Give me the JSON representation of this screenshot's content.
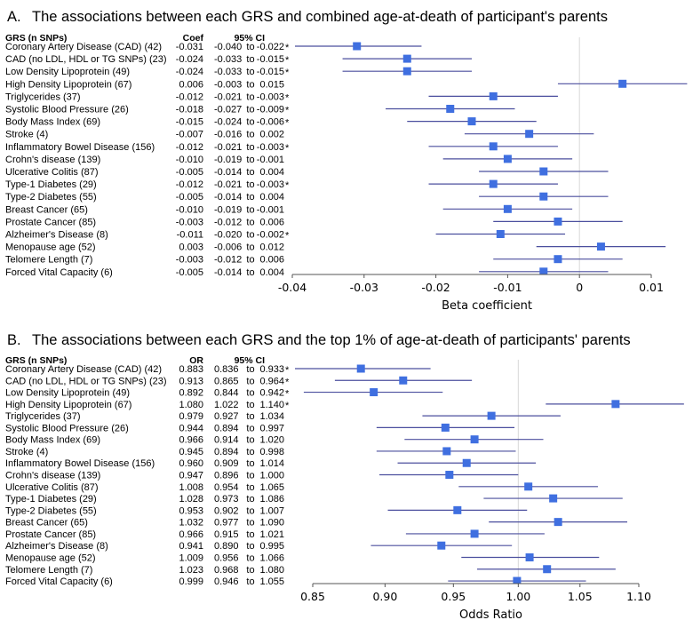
{
  "colors": {
    "marker": "#3f6fe0",
    "ci_line": "#4b4f9e",
    "ref_line": "#d8d8d8",
    "axis": "#555555"
  },
  "chart_data": [
    {
      "type": "forest",
      "panel": "A.",
      "title": "The associations between each GRS and combined age-at-death of participant's parents",
      "columns": [
        "GRS (n SNPs)",
        "Coef",
        "95% CI"
      ],
      "xlabel": "Beta coefficient",
      "xscale": "linear",
      "xlim": [
        -0.04,
        0.014
      ],
      "xticks": [
        -0.04,
        -0.03,
        -0.02,
        -0.01,
        0,
        0.01
      ],
      "xtick_labels": [
        "-0.04",
        "-0.03",
        "-0.02",
        "-0.01",
        "0",
        "0.01"
      ],
      "reference": 0,
      "rows": [
        {
          "label": "Coronary Artery Disease (CAD) (42)",
          "est": "-0.031",
          "lo": "-0.040",
          "hi": "-0.022",
          "sig": true
        },
        {
          "label": "CAD (no LDL, HDL or TG SNPs) (23)",
          "est": "-0.024",
          "lo": "-0.033",
          "hi": "-0.015",
          "sig": true
        },
        {
          "label": "Low Density Lipoprotein (49)",
          "est": "-0.024",
          "lo": "-0.033",
          "hi": "-0.015",
          "sig": true
        },
        {
          "label": "High Density Lipoprotein (67)",
          "est": "0.006",
          "lo": "-0.003",
          "hi": "0.015",
          "sig": false
        },
        {
          "label": "Triglycerides (37)",
          "est": "-0.012",
          "lo": "-0.021",
          "hi": "-0.003",
          "sig": true
        },
        {
          "label": "Systolic Blood Pressure (26)",
          "est": "-0.018",
          "lo": "-0.027",
          "hi": "-0.009",
          "sig": true
        },
        {
          "label": "Body Mass Index (69)",
          "est": "-0.015",
          "lo": "-0.024",
          "hi": "-0.006",
          "sig": true
        },
        {
          "label": "Stroke (4)",
          "est": "-0.007",
          "lo": "-0.016",
          "hi": "0.002",
          "sig": false
        },
        {
          "label": "Inflammatory Bowel Disease (156)",
          "est": "-0.012",
          "lo": "-0.021",
          "hi": "-0.003",
          "sig": true
        },
        {
          "label": "Crohn's disease (139)",
          "est": "-0.010",
          "lo": "-0.019",
          "hi": "-0.001",
          "sig": false
        },
        {
          "label": "Ulcerative Colitis (87)",
          "est": "-0.005",
          "lo": "-0.014",
          "hi": "0.004",
          "sig": false
        },
        {
          "label": "Type-1 Diabetes (29)",
          "est": "-0.012",
          "lo": "-0.021",
          "hi": "-0.003",
          "sig": true
        },
        {
          "label": "Type-2 Diabetes (55)",
          "est": "-0.005",
          "lo": "-0.014",
          "hi": "0.004",
          "sig": false
        },
        {
          "label": "Breast Cancer (65)",
          "est": "-0.010",
          "lo": "-0.019",
          "hi": "-0.001",
          "sig": false
        },
        {
          "label": "Prostate Cancer (85)",
          "est": "-0.003",
          "lo": "-0.012",
          "hi": "0.006",
          "sig": false
        },
        {
          "label": "Alzheimer's Disease (8)",
          "est": "-0.011",
          "lo": "-0.020",
          "hi": "-0.002",
          "sig": true
        },
        {
          "label": "Menopause age (52)",
          "est": "0.003",
          "lo": "-0.006",
          "hi": "0.012",
          "sig": false
        },
        {
          "label": "Telomere Length (7)",
          "est": "-0.003",
          "lo": "-0.012",
          "hi": "0.006",
          "sig": false
        },
        {
          "label": "Forced Vital Capacity (6)",
          "est": "-0.005",
          "lo": "-0.014",
          "hi": "0.004",
          "sig": false
        }
      ]
    },
    {
      "type": "forest",
      "panel": "B.",
      "title": "The associations between each GRS and the top 1% of age-at-death of participants' parents",
      "columns": [
        "GRS (n SNPs)",
        "OR",
        "95% CI"
      ],
      "xlabel": "Odds Ratio",
      "xscale": "log",
      "xlim": [
        0.82,
        1.14
      ],
      "xticks": [
        0.85,
        0.9,
        0.95,
        1.0,
        1.05,
        1.1
      ],
      "xtick_labels": [
        "0.85",
        "0.90",
        "0.95",
        "1.00",
        "1.05",
        "1.10"
      ],
      "reference": 1,
      "rows": [
        {
          "label": "Coronary Artery Disease (CAD) (42)",
          "est": "0.883",
          "lo": "0.836",
          "hi": "0.933",
          "sig": true
        },
        {
          "label": "CAD (no LDL, HDL or TG SNPs) (23)",
          "est": "0.913",
          "lo": "0.865",
          "hi": "0.964",
          "sig": true
        },
        {
          "label": "Low Density Lipoprotein (49)",
          "est": "0.892",
          "lo": "0.844",
          "hi": "0.942",
          "sig": true
        },
        {
          "label": "High Density Lipoprotein (67)",
          "est": "1.080",
          "lo": "1.022",
          "hi": "1.140",
          "sig": true
        },
        {
          "label": "Triglycerides (37)",
          "est": "0.979",
          "lo": "0.927",
          "hi": "1.034",
          "sig": false
        },
        {
          "label": "Systolic Blood Pressure (26)",
          "est": "0.944",
          "lo": "0.894",
          "hi": "0.997",
          "sig": false
        },
        {
          "label": "Body Mass Index (69)",
          "est": "0.966",
          "lo": "0.914",
          "hi": "1.020",
          "sig": false
        },
        {
          "label": "Stroke (4)",
          "est": "0.945",
          "lo": "0.894",
          "hi": "0.998",
          "sig": false
        },
        {
          "label": "Inflammatory Bowel Disease (156)",
          "est": "0.960",
          "lo": "0.909",
          "hi": "1.014",
          "sig": false
        },
        {
          "label": "Crohn's disease (139)",
          "est": "0.947",
          "lo": "0.896",
          "hi": "1.000",
          "sig": false
        },
        {
          "label": "Ulcerative Colitis (87)",
          "est": "1.008",
          "lo": "0.954",
          "hi": "1.065",
          "sig": false
        },
        {
          "label": "Type-1 Diabetes (29)",
          "est": "1.028",
          "lo": "0.973",
          "hi": "1.086",
          "sig": false
        },
        {
          "label": "Type-2 Diabetes (55)",
          "est": "0.953",
          "lo": "0.902",
          "hi": "1.007",
          "sig": false
        },
        {
          "label": "Breast Cancer (65)",
          "est": "1.032",
          "lo": "0.977",
          "hi": "1.090",
          "sig": false
        },
        {
          "label": "Prostate Cancer (85)",
          "est": "0.966",
          "lo": "0.915",
          "hi": "1.021",
          "sig": false
        },
        {
          "label": "Alzheimer's Disease (8)",
          "est": "0.941",
          "lo": "0.890",
          "hi": "0.995",
          "sig": false
        },
        {
          "label": "Menopause age (52)",
          "est": "1.009",
          "lo": "0.956",
          "hi": "1.066",
          "sig": false
        },
        {
          "label": "Telomere Length (7)",
          "est": "1.023",
          "lo": "0.968",
          "hi": "1.080",
          "sig": false
        },
        {
          "label": "Forced Vital Capacity (6)",
          "est": "0.999",
          "lo": "0.946",
          "hi": "1.055",
          "sig": false
        }
      ]
    }
  ]
}
